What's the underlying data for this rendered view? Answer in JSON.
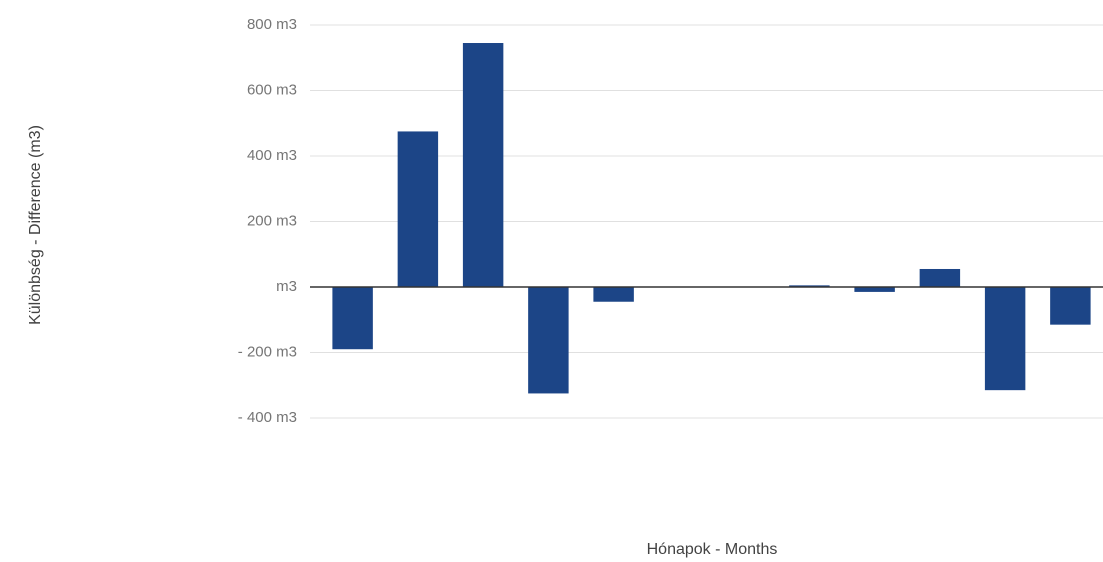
{
  "chart_data": {
    "type": "bar",
    "y_label": "Különbség - Difference (m3)",
    "x_label": "Hónapok - Months",
    "categories": [
      null,
      null,
      null,
      null,
      null,
      null,
      null,
      null,
      null,
      null,
      null,
      null
    ],
    "values": [
      -190,
      475,
      745,
      -325,
      -45,
      0,
      0,
      5,
      -15,
      55,
      -315,
      -115
    ],
    "color": "#1c4587",
    "ylim": [
      -400,
      800
    ],
    "yticks": [
      {
        "value": -400,
        "label": "- 400 m3"
      },
      {
        "value": -200,
        "label": "- 200 m3"
      },
      {
        "value": 0,
        "label": "m3"
      },
      {
        "value": 200,
        "label": "200  m3"
      },
      {
        "value": 400,
        "label": "400  m3"
      },
      {
        "value": 600,
        "label": "600  m3"
      },
      {
        "value": 800,
        "label": "800  m3"
      }
    ],
    "grid": true
  }
}
